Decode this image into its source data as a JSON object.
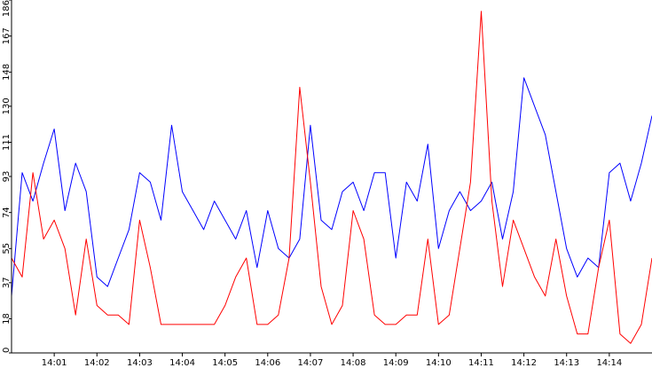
{
  "chart_data": {
    "type": "line",
    "title": "",
    "xlabel": "",
    "ylabel": "",
    "ylim": [
      0,
      186
    ],
    "xlim": [
      "14:00:00",
      "14:15:00"
    ],
    "y_ticks": [
      "0",
      "18",
      "37",
      "55",
      "74",
      "93",
      "111",
      "130",
      "148",
      "167",
      "186"
    ],
    "x_ticks": [
      "14:01",
      "14:02",
      "14:03",
      "14:04",
      "14:05",
      "14:06",
      "14:07",
      "14:08",
      "14:09",
      "14:10",
      "14:11",
      "14:12",
      "14:13",
      "14:14"
    ],
    "grid": false,
    "legend": "none",
    "series": [
      {
        "color": "#0000ff",
        "x": [
          "14:00:00",
          "14:00:15",
          "14:00:30",
          "14:00:45",
          "14:01:00",
          "14:01:15",
          "14:01:30",
          "14:01:45",
          "14:02:00",
          "14:02:15",
          "14:02:30",
          "14:02:45",
          "14:03:00",
          "14:03:15",
          "14:03:30",
          "14:03:45",
          "14:04:00",
          "14:04:15",
          "14:04:30",
          "14:04:45",
          "14:05:00",
          "14:05:15",
          "14:05:30",
          "14:05:45",
          "14:06:00",
          "14:06:15",
          "14:06:30",
          "14:06:45",
          "14:07:00",
          "14:07:15",
          "14:07:30",
          "14:07:45",
          "14:08:00",
          "14:08:15",
          "14:08:30",
          "14:08:45",
          "14:09:00",
          "14:09:15",
          "14:09:30",
          "14:09:45",
          "14:10:00",
          "14:10:15",
          "14:10:30",
          "14:10:45",
          "14:11:00",
          "14:11:15",
          "14:11:30",
          "14:11:45",
          "14:12:00",
          "14:12:15",
          "14:12:30",
          "14:12:45",
          "14:13:00",
          "14:13:15",
          "14:13:30",
          "14:13:45",
          "14:14:00",
          "14:14:15",
          "14:14:30",
          "14:14:45",
          "14:15:00"
        ],
        "values": [
          30,
          95,
          80,
          100,
          118,
          75,
          100,
          85,
          40,
          35,
          50,
          65,
          95,
          90,
          70,
          120,
          85,
          75,
          65,
          80,
          70,
          60,
          75,
          45,
          75,
          55,
          50,
          60,
          120,
          70,
          65,
          85,
          90,
          75,
          95,
          95,
          50,
          90,
          80,
          110,
          55,
          75,
          85,
          75,
          80,
          90,
          60,
          85,
          145,
          130,
          115,
          85,
          55,
          40,
          50,
          45,
          95,
          100,
          80,
          100,
          125
        ]
      },
      {
        "color": "#ff0000",
        "x": [
          "14:00:00",
          "14:00:15",
          "14:00:30",
          "14:00:45",
          "14:01:00",
          "14:01:15",
          "14:01:30",
          "14:01:45",
          "14:02:00",
          "14:02:15",
          "14:02:30",
          "14:02:45",
          "14:03:00",
          "14:03:15",
          "14:03:30",
          "14:03:45",
          "14:04:00",
          "14:04:15",
          "14:04:30",
          "14:04:45",
          "14:05:00",
          "14:05:15",
          "14:05:30",
          "14:05:45",
          "14:06:00",
          "14:06:15",
          "14:06:30",
          "14:06:45",
          "14:07:00",
          "14:07:15",
          "14:07:30",
          "14:07:45",
          "14:08:00",
          "14:08:15",
          "14:08:30",
          "14:08:45",
          "14:09:00",
          "14:09:15",
          "14:09:30",
          "14:09:45",
          "14:10:00",
          "14:10:15",
          "14:10:30",
          "14:10:45",
          "14:11:00",
          "14:11:15",
          "14:11:30",
          "14:11:45",
          "14:12:00",
          "14:12:15",
          "14:12:30",
          "14:12:45",
          "14:13:00",
          "14:13:15",
          "14:13:30",
          "14:13:45",
          "14:14:00",
          "14:14:15",
          "14:14:30",
          "14:14:45",
          "14:15:00"
        ],
        "values": [
          50,
          40,
          95,
          60,
          70,
          55,
          20,
          60,
          25,
          20,
          20,
          15,
          70,
          45,
          15,
          15,
          15,
          15,
          15,
          15,
          25,
          40,
          50,
          15,
          15,
          20,
          50,
          140,
          90,
          35,
          15,
          25,
          75,
          60,
          20,
          15,
          15,
          20,
          20,
          60,
          15,
          20,
          55,
          90,
          180,
          80,
          35,
          70,
          55,
          40,
          30,
          60,
          30,
          10,
          10,
          45,
          70,
          10,
          5,
          15,
          50
        ]
      }
    ]
  }
}
